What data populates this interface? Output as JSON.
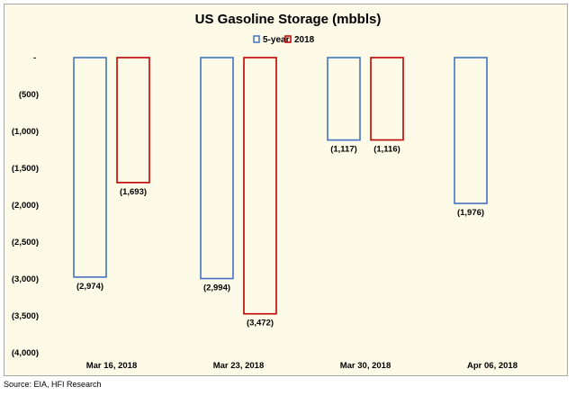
{
  "chart_data": {
    "type": "bar",
    "title": "US Gasoline Storage (mbbls)",
    "xlabel": "",
    "ylabel": "",
    "categories": [
      "Mar 16, 2018",
      "Mar 23, 2018",
      "Mar 30, 2018",
      "Apr 06, 2018"
    ],
    "series": [
      {
        "name": "5-year",
        "values": [
          -2974,
          -2994,
          -1117,
          -1976
        ],
        "labels": [
          "(2,974)",
          "(2,994)",
          "(1,117)",
          "(1,976)"
        ],
        "color": "#4472c4"
      },
      {
        "name": "2018",
        "values": [
          -1693,
          -3472,
          -1116,
          null
        ],
        "labels": [
          "(1,693)",
          "(3,472)",
          "(1,116)",
          ""
        ],
        "color": "#c00000"
      }
    ],
    "ylim": [
      -4000,
      0
    ],
    "yticks": [
      0,
      -500,
      -1000,
      -1500,
      -2000,
      -2500,
      -3000,
      -3500,
      -4000
    ],
    "ytick_labels": [
      "-",
      "(500)",
      "(1,000)",
      "(1,500)",
      "(2,000)",
      "(2,500)",
      "(3,000)",
      "(3,500)",
      "(4,000)"
    ],
    "bar_fill": "none",
    "grid": false,
    "legend_position": "top-center"
  },
  "source": "Source: EIA, HFI Research"
}
